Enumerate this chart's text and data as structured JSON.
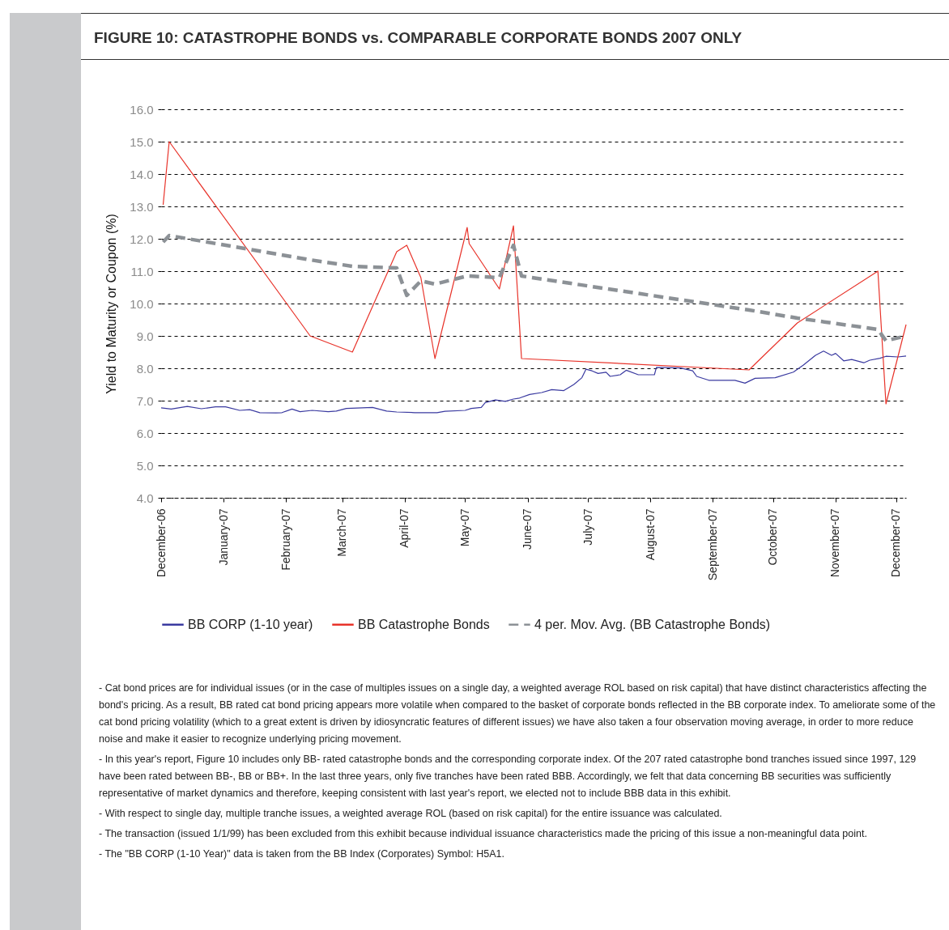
{
  "chart_data": {
    "type": "line",
    "title": "FIGURE 10: CATASTROPHE BONDS vs. COMPARABLE CORPORATE BONDS 2007 ONLY",
    "ylabel": "Yield to Maturity or Coupon (%)",
    "xlim": [
      "2006-12-01",
      "2007-12-06"
    ],
    "xticks": [
      {
        "value": "2006-12-01",
        "label": "December-06"
      },
      {
        "value": "2007-01-01",
        "label": "January-07"
      },
      {
        "value": "2007-02-01",
        "label": "February-07"
      },
      {
        "value": "2007-03-01",
        "label": "March-07"
      },
      {
        "value": "2007-04-01",
        "label": "April-07"
      },
      {
        "value": "2007-05-01",
        "label": "May-07"
      },
      {
        "value": "2007-06-01",
        "label": "June-07"
      },
      {
        "value": "2007-07-01",
        "label": "July-07"
      },
      {
        "value": "2007-08-01",
        "label": "August-07"
      },
      {
        "value": "2007-09-01",
        "label": "September-07"
      },
      {
        "value": "2007-10-01",
        "label": "October-07"
      },
      {
        "value": "2007-11-01",
        "label": "November-07"
      },
      {
        "value": "2007-12-01",
        "label": "December-07"
      }
    ],
    "ylim": [
      4,
      16
    ],
    "yticks": [
      {
        "value": 4,
        "label": "4.0"
      },
      {
        "value": 5,
        "label": "5.0"
      },
      {
        "value": 6,
        "label": "6.0"
      },
      {
        "value": 7,
        "label": "7.0"
      },
      {
        "value": 8,
        "label": "8.0"
      },
      {
        "value": 9,
        "label": "9.0"
      },
      {
        "value": 10,
        "label": "10.0"
      },
      {
        "value": 11,
        "label": "11.0"
      },
      {
        "value": 12,
        "label": "12.0"
      },
      {
        "value": 13,
        "label": "13.0"
      },
      {
        "value": 14,
        "label": "14.0"
      },
      {
        "value": 15,
        "label": "15.0"
      },
      {
        "value": 16,
        "label": "16.0"
      }
    ],
    "grid": "y",
    "legend": "bottom",
    "series": [
      {
        "name": "BB CORP (1-10 year)",
        "color": "#3a3aa0",
        "line_style": "solid",
        "x": [
          "2006-12-01",
          "2006-12-06",
          "2006-12-14",
          "2006-12-21",
          "2006-12-28",
          "2007-01-02",
          "2007-01-09",
          "2007-01-14",
          "2007-01-19",
          "2007-01-27",
          "2007-01-30",
          "2007-02-04",
          "2007-02-08",
          "2007-02-14",
          "2007-02-22",
          "2007-02-26",
          "2007-03-03",
          "2007-03-16",
          "2007-03-23",
          "2007-03-28",
          "2007-04-06",
          "2007-04-17",
          "2007-04-21",
          "2007-05-01",
          "2007-05-04",
          "2007-05-09",
          "2007-05-11",
          "2007-05-16",
          "2007-05-21",
          "2007-05-25",
          "2007-05-28",
          "2007-06-02",
          "2007-06-08",
          "2007-06-13",
          "2007-06-19",
          "2007-06-24",
          "2007-06-28",
          "2007-06-30",
          "2007-07-03",
          "2007-07-06",
          "2007-07-10",
          "2007-07-12",
          "2007-07-17",
          "2007-07-20",
          "2007-07-26",
          "2007-08-03",
          "2007-08-04",
          "2007-08-16",
          "2007-08-22",
          "2007-08-24",
          "2007-08-30",
          "2007-09-05",
          "2007-09-12",
          "2007-09-17",
          "2007-09-22",
          "2007-10-02",
          "2007-10-11",
          "2007-10-16",
          "2007-10-22",
          "2007-10-26",
          "2007-10-30",
          "2007-11-01",
          "2007-11-05",
          "2007-11-09",
          "2007-11-15",
          "2007-11-18",
          "2007-11-23",
          "2007-11-26",
          "2007-12-02",
          "2007-12-06"
        ],
        "values": [
          6.78,
          6.74,
          6.82,
          6.75,
          6.81,
          6.81,
          6.7,
          6.72,
          6.63,
          6.62,
          6.63,
          6.74,
          6.66,
          6.7,
          6.66,
          6.68,
          6.76,
          6.79,
          6.68,
          6.65,
          6.63,
          6.63,
          6.67,
          6.7,
          6.76,
          6.79,
          6.94,
          7.02,
          6.98,
          7.05,
          7.08,
          7.19,
          7.25,
          7.34,
          7.31,
          7.5,
          7.71,
          7.97,
          7.92,
          7.84,
          7.88,
          7.75,
          7.8,
          7.94,
          7.8,
          7.8,
          8.03,
          8.01,
          7.92,
          7.75,
          7.63,
          7.63,
          7.63,
          7.54,
          7.69,
          7.71,
          7.88,
          8.1,
          8.4,
          8.53,
          8.4,
          8.46,
          8.23,
          8.27,
          8.17,
          8.25,
          8.31,
          8.37,
          8.35,
          8.38
        ]
      },
      {
        "name": "BB Catastrophe Bonds",
        "color": "#e8332a",
        "line_style": "solid",
        "x": [
          "2006-12-02",
          "2006-12-05",
          "2007-02-13",
          "2007-03-06",
          "2007-03-28",
          "2007-04-02",
          "2007-04-09",
          "2007-04-16",
          "2007-05-02",
          "2007-05-03",
          "2007-05-18",
          "2007-05-25",
          "2007-05-29",
          "2007-09-19",
          "2007-10-13",
          "2007-11-22",
          "2007-11-26",
          "2007-12-06"
        ],
        "values": [
          13.05,
          15.0,
          9.0,
          8.5,
          11.6,
          11.8,
          10.8,
          8.3,
          12.35,
          11.85,
          10.45,
          12.4,
          8.3,
          7.95,
          9.4,
          11.0,
          6.9,
          9.35
        ]
      },
      {
        "name": "4 per. Mov. Avg. (BB Catastrophe Bonds)",
        "color": "#8c9196",
        "line_style": "dashed",
        "x": [
          "2006-12-02",
          "2006-12-05",
          "2007-02-13",
          "2007-03-06",
          "2007-03-28",
          "2007-04-02",
          "2007-04-09",
          "2007-04-16",
          "2007-05-02",
          "2007-05-03",
          "2007-05-18",
          "2007-05-25",
          "2007-05-29",
          "2007-09-19",
          "2007-10-13",
          "2007-11-22",
          "2007-11-26",
          "2007-12-06"
        ],
        "values": [
          11.9,
          12.1,
          11.35,
          11.15,
          11.1,
          10.25,
          10.7,
          10.6,
          10.85,
          10.85,
          10.8,
          11.8,
          10.85,
          9.8,
          9.55,
          9.2,
          8.85,
          9.0
        ]
      }
    ],
    "annotations": [
      "- Cat bond prices are for individual issues (or in the case of multiples issues on a single day, a weighted average ROL based on risk capital) that have distinct characteristics affecting the bond's pricing.  As a result, BB rated cat bond pricing appears more volatile when compared to the basket of corporate bonds reflected in the BB corporate index. To ameliorate some of the cat bond pricing volatility (which to a great extent is driven by idiosyncratic features of different issues) we have also taken a four observation moving average, in order to more reduce noise and make it easier to recognize underlying pricing movement.",
      "- In this year's report, Figure 10 includes only BB- rated catastrophe bonds and the corresponding corporate index.  Of the 207 rated catastrophe bond tranches issued since 1997, 129 have been rated between BB-, BB or BB+.  In the last three years, only five tranches have been rated BBB.  Accordingly, we felt that data concerning BB securities was sufficiently representative of market dynamics and therefore, keeping consistent with last year's report, we elected not to include BBB data in this exhibit.",
      "- With respect to single day, multiple tranche issues, a weighted average ROL (based on risk capital) for the entire issuance was calculated.",
      "- The transaction (issued 1/1/99) has been excluded from this exhibit because individual issuance characteristics made the pricing of this issue a non-meaningful data point.",
      "- The \"BB CORP (1-10 Year)\" data is taken from the BB Index (Corporates) Symbol: H5A1."
    ]
  }
}
